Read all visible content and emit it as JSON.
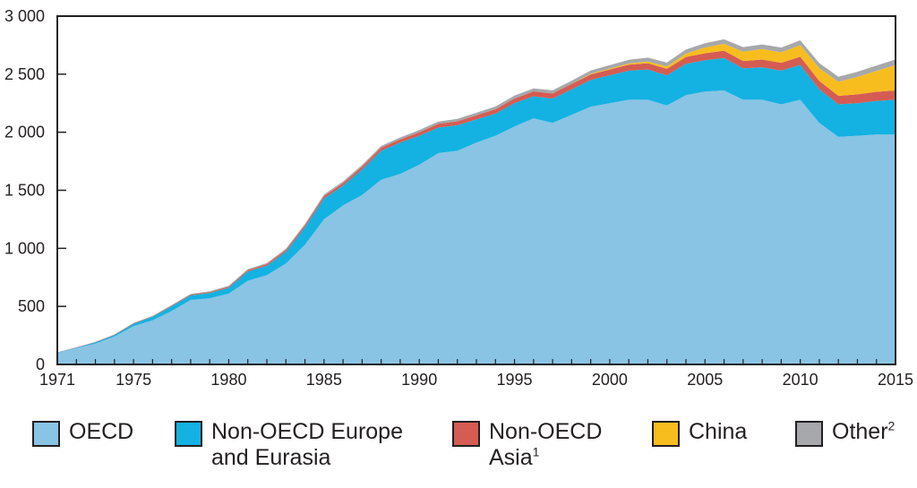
{
  "chart_data": {
    "type": "area",
    "stacked": true,
    "title": "",
    "xlabel": "",
    "ylabel": "",
    "xlim": [
      1971,
      2015
    ],
    "ylim": [
      0,
      3000
    ],
    "yticks": [
      0,
      500,
      1000,
      1500,
      2000,
      2500,
      3000
    ],
    "ytick_labels": [
      "0",
      "500",
      "1 000",
      "1 500",
      "2 000",
      "2 500",
      "3 000"
    ],
    "xticks": [
      1971,
      1975,
      1980,
      1985,
      1990,
      1995,
      2000,
      2005,
      2010,
      2015
    ],
    "xtick_labels": [
      "1971",
      "1975",
      "1980",
      "1985",
      "1990",
      "1995",
      "2000",
      "2005",
      "2010",
      "2015"
    ],
    "x": [
      1971,
      1972,
      1973,
      1974,
      1975,
      1976,
      1977,
      1978,
      1979,
      1980,
      1981,
      1982,
      1983,
      1984,
      1985,
      1986,
      1987,
      1988,
      1989,
      1990,
      1991,
      1992,
      1993,
      1994,
      1995,
      1996,
      1997,
      1998,
      1999,
      2000,
      2001,
      2002,
      2003,
      2004,
      2005,
      2006,
      2007,
      2008,
      2009,
      2010,
      2011,
      2012,
      2013,
      2014,
      2015
    ],
    "series": [
      {
        "name": "OECD",
        "color": "#89c4e4",
        "values": [
          100,
          140,
          180,
          240,
          330,
          380,
          460,
          555,
          570,
          610,
          720,
          770,
          870,
          1030,
          1250,
          1370,
          1460,
          1590,
          1640,
          1720,
          1820,
          1840,
          1910,
          1970,
          2050,
          2120,
          2080,
          2150,
          2220,
          2250,
          2280,
          2280,
          2230,
          2320,
          2350,
          2360,
          2280,
          2280,
          2240,
          2280,
          2080,
          1960,
          1970,
          1980,
          1980
        ]
      },
      {
        "name": "Non-OECD Europe and Eurasia",
        "color": "#13b2e2",
        "values": [
          3,
          5,
          10,
          12,
          20,
          30,
          40,
          40,
          45,
          50,
          80,
          80,
          100,
          150,
          180,
          170,
          220,
          250,
          270,
          250,
          220,
          220,
          200,
          190,
          200,
          190,
          210,
          220,
          230,
          240,
          250,
          260,
          260,
          270,
          270,
          280,
          270,
          280,
          290,
          300,
          290,
          280,
          280,
          290,
          300
        ]
      },
      {
        "name": "Non-OECD Asia1",
        "color": "#d55c52",
        "values": [
          1,
          2,
          3,
          4,
          5,
          5,
          6,
          7,
          8,
          10,
          12,
          14,
          16,
          18,
          20,
          22,
          24,
          26,
          28,
          30,
          32,
          34,
          36,
          38,
          40,
          42,
          44,
          46,
          48,
          50,
          52,
          54,
          56,
          58,
          60,
          62,
          64,
          66,
          68,
          70,
          72,
          74,
          76,
          78,
          80
        ]
      },
      {
        "name": "China",
        "color": "#f7bd1f",
        "values": [
          0,
          0,
          0,
          0,
          0,
          0,
          0,
          0,
          0,
          0,
          0,
          0,
          0,
          0,
          0,
          0,
          0,
          0,
          0,
          0,
          0,
          0,
          0,
          0,
          0,
          0,
          0,
          0,
          5,
          8,
          10,
          15,
          20,
          30,
          50,
          60,
          80,
          90,
          90,
          100,
          110,
          120,
          150,
          180,
          220
        ]
      },
      {
        "name": "Other2",
        "color": "#a6a8ab",
        "values": [
          0,
          0,
          2,
          2,
          3,
          4,
          5,
          6,
          7,
          8,
          9,
          10,
          11,
          12,
          13,
          14,
          15,
          16,
          17,
          18,
          20,
          21,
          22,
          23,
          25,
          26,
          27,
          28,
          29,
          30,
          32,
          33,
          34,
          35,
          36,
          38,
          39,
          40,
          41,
          42,
          43,
          44,
          45,
          46,
          47
        ]
      }
    ]
  },
  "legend": {
    "items": [
      {
        "label": "OECD",
        "sup": "",
        "color": "#89c4e4"
      },
      {
        "label": "Non-OECD Europe\nand Eurasia",
        "sup": "",
        "color": "#13b2e2"
      },
      {
        "label": "Non-OECD\nAsia",
        "sup": "1",
        "color": "#d55c52"
      },
      {
        "label": "China",
        "sup": "",
        "color": "#f7bd1f"
      },
      {
        "label": "Other",
        "sup": "2",
        "color": "#a6a8ab"
      }
    ]
  }
}
